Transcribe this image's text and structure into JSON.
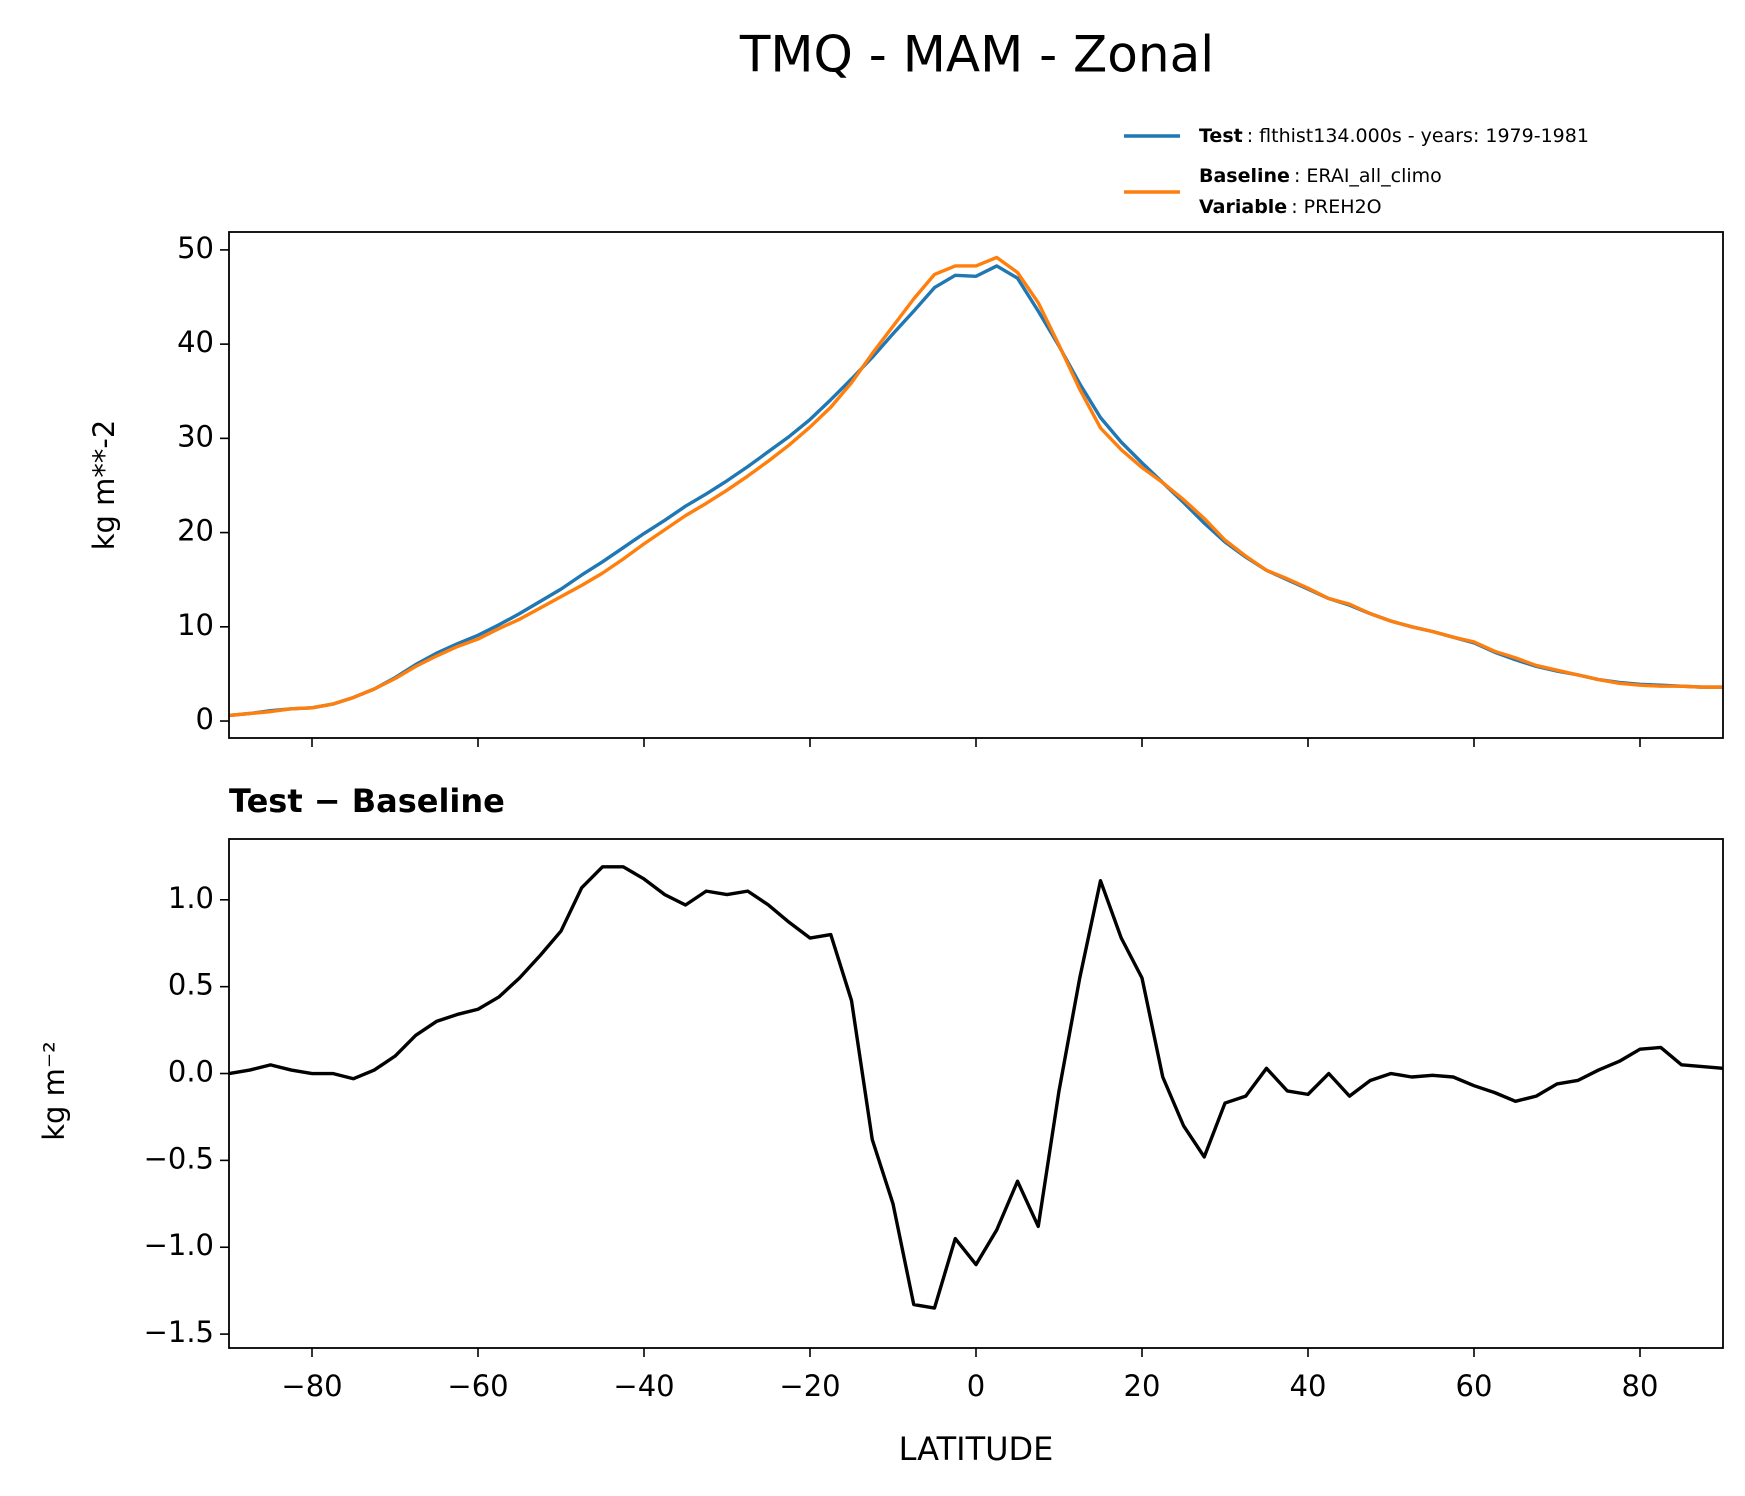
{
  "chart_data": [
    {
      "type": "line",
      "title": "TMQ - MAM - Zonal",
      "ylabel": "kg m**-2",
      "x": [
        -90,
        -87.5,
        -85,
        -82.5,
        -80,
        -77.5,
        -75,
        -72.5,
        -70,
        -67.5,
        -65,
        -62.5,
        -60,
        -57.5,
        -55,
        -52.5,
        -50,
        -47.5,
        -45,
        -42.5,
        -40,
        -37.5,
        -35,
        -32.5,
        -30,
        -27.5,
        -25,
        -22.5,
        -20,
        -17.5,
        -15,
        -12.5,
        -10,
        -7.5,
        -5,
        -2.5,
        0,
        2.5,
        5,
        7.5,
        10,
        12.5,
        15,
        17.5,
        20,
        22.5,
        25,
        27.5,
        30,
        32.5,
        35,
        37.5,
        40,
        42.5,
        45,
        47.5,
        50,
        52.5,
        55,
        57.5,
        60,
        62.5,
        65,
        67.5,
        70,
        72.5,
        75,
        77.5,
        80,
        82.5,
        85,
        87.5,
        90
      ],
      "series": [
        {
          "name": "Test",
          "detail": ": flthist134.000s - years: 1979-1981",
          "color": "#1f77b4",
          "values": [
            0.6,
            0.8,
            1.1,
            1.3,
            1.4,
            1.8,
            2.5,
            3.4,
            4.6,
            6.0,
            7.2,
            8.2,
            9.1,
            10.2,
            11.4,
            12.7,
            14.0,
            15.5,
            16.9,
            18.4,
            19.9,
            21.3,
            22.8,
            24.1,
            25.5,
            27.0,
            28.6,
            30.2,
            32.0,
            34.1,
            36.3,
            38.6,
            41.1,
            43.5,
            46.0,
            47.3,
            47.2,
            48.3,
            47.0,
            43.5,
            39.8,
            35.8,
            32.2,
            29.6,
            27.4,
            25.3,
            23.2,
            21.0,
            19.0,
            17.4,
            16.0,
            15.0,
            14.0,
            13.0,
            12.3,
            11.4,
            10.6,
            10.0,
            9.5,
            8.9,
            8.3,
            7.3,
            6.5,
            5.8,
            5.3,
            4.9,
            4.4,
            4.1,
            3.9,
            3.8,
            3.7,
            3.6,
            3.6
          ]
        },
        {
          "name": "Baseline",
          "detail": ": ERAI_all_climo",
          "extra_name": "Variable",
          "extra_detail": ": PREH2O",
          "color": "#ff7f0e",
          "values": [
            0.6,
            0.8,
            1.0,
            1.3,
            1.4,
            1.8,
            2.5,
            3.4,
            4.5,
            5.8,
            6.9,
            7.9,
            8.7,
            9.8,
            10.8,
            12.0,
            13.2,
            14.4,
            15.7,
            17.2,
            18.8,
            20.3,
            21.8,
            23.1,
            24.5,
            26.0,
            27.6,
            29.3,
            31.2,
            33.3,
            35.9,
            39.0,
            41.9,
            44.8,
            47.4,
            48.3,
            48.3,
            49.2,
            47.6,
            44.4,
            39.9,
            35.2,
            31.1,
            28.8,
            26.9,
            25.3,
            23.5,
            21.5,
            19.2,
            17.5,
            16.0,
            15.1,
            14.1,
            13.0,
            12.4,
            11.4,
            10.6,
            10.0,
            9.5,
            8.9,
            8.4,
            7.4,
            6.7,
            5.9,
            5.4,
            4.9,
            4.4,
            4.0,
            3.8,
            3.7,
            3.7,
            3.6,
            3.6
          ]
        }
      ],
      "xlim": [
        -90,
        90
      ],
      "xticks": [
        -80,
        -60,
        -40,
        -20,
        0,
        20,
        40,
        60,
        80
      ],
      "xtick_labels": false,
      "ylim": [
        -1.8,
        51.9
      ],
      "yticks": [
        0,
        10,
        20,
        30,
        40,
        50
      ],
      "legend": "upper right"
    },
    {
      "type": "line",
      "title": "Test − Baseline",
      "ylabel": "kg m⁻²",
      "xlabel": "LATITUDE",
      "x": [
        -90,
        -87.5,
        -85,
        -82.5,
        -80,
        -77.5,
        -75,
        -72.5,
        -70,
        -67.5,
        -65,
        -62.5,
        -60,
        -57.5,
        -55,
        -52.5,
        -50,
        -47.5,
        -45,
        -42.5,
        -40,
        -37.5,
        -35,
        -32.5,
        -30,
        -27.5,
        -25,
        -22.5,
        -20,
        -17.5,
        -15,
        -12.5,
        -10,
        -7.5,
        -5,
        -2.5,
        0,
        2.5,
        5,
        7.5,
        10,
        12.5,
        15,
        17.5,
        20,
        22.5,
        25,
        27.5,
        30,
        32.5,
        35,
        37.5,
        40,
        42.5,
        45,
        47.5,
        50,
        52.5,
        55,
        57.5,
        60,
        62.5,
        65,
        67.5,
        70,
        72.5,
        75,
        77.5,
        80,
        82.5,
        85,
        87.5,
        90
      ],
      "values": [
        0.0,
        0.02,
        0.05,
        0.02,
        0.0,
        0.0,
        -0.03,
        0.02,
        0.1,
        0.22,
        0.3,
        0.34,
        0.37,
        0.44,
        0.55,
        0.68,
        0.82,
        1.07,
        1.19,
        1.19,
        1.12,
        1.03,
        0.97,
        1.05,
        1.03,
        1.05,
        0.97,
        0.87,
        0.78,
        0.8,
        0.42,
        -0.38,
        -0.75,
        -1.33,
        -1.35,
        -0.95,
        -1.1,
        -0.9,
        -0.62,
        -0.88,
        -0.1,
        0.55,
        1.11,
        0.78,
        0.55,
        -0.02,
        -0.3,
        -0.48,
        -0.17,
        -0.13,
        0.03,
        -0.1,
        -0.12,
        0.0,
        -0.13,
        -0.04,
        0.0,
        -0.02,
        -0.01,
        -0.02,
        -0.07,
        -0.11,
        -0.16,
        -0.13,
        -0.06,
        -0.04,
        0.02,
        0.07,
        0.14,
        0.15,
        0.05,
        0.04,
        0.03
      ],
      "color": "#000000",
      "xlim": [
        -90,
        90
      ],
      "xticks": [
        {
          "value": -80,
          "label": "−80"
        },
        {
          "value": -60,
          "label": "−60"
        },
        {
          "value": -40,
          "label": "−40"
        },
        {
          "value": -20,
          "label": "−20"
        },
        0,
        20,
        40,
        60,
        80
      ],
      "xtick_labels": true,
      "ylim": [
        -1.58,
        1.35
      ],
      "yticks": [
        {
          "value": -1.5,
          "label": "−1.5"
        },
        {
          "value": -1.0,
          "label": "−1.0"
        },
        {
          "value": -0.5,
          "label": "−0.5"
        },
        {
          "value": 0,
          "label": "0.0"
        },
        {
          "value": 0.5,
          "label": "0.5"
        },
        {
          "value": 1.0,
          "label": "1.0"
        }
      ]
    }
  ]
}
